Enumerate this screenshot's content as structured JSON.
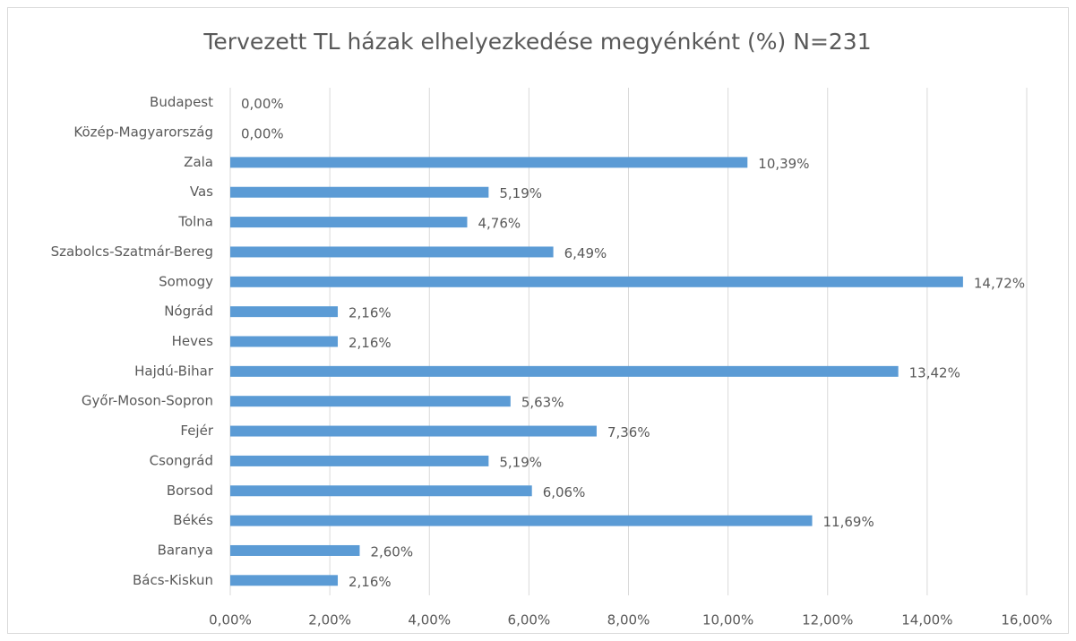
{
  "chart_data": {
    "type": "bar",
    "orientation": "horizontal",
    "title": "Tervezett TL házak elhelyezkedése megyénként (%) N=231",
    "categories": [
      "Budapest",
      "Közép-Magyarország",
      "Zala",
      "Vas",
      "Tolna",
      "Szabolcs-Szatmár-Bereg",
      "Somogy",
      "Nógrád",
      "Heves",
      "Hajdú-Bihar",
      "Győr-Moson-Sopron",
      "Fejér",
      "Csongrád",
      "Borsod",
      "Békés",
      "Baranya",
      "Bács-Kiskun"
    ],
    "values": [
      0,
      0,
      10.39,
      5.19,
      4.76,
      6.49,
      14.72,
      2.16,
      2.16,
      13.42,
      5.63,
      7.36,
      5.19,
      6.06,
      11.69,
      2.6,
      2.16
    ],
    "value_labels": [
      "0,00%",
      "0,00%",
      "10,39%",
      "5,19%",
      "4,76%",
      "6,49%",
      "14,72%",
      "2,16%",
      "2,16%",
      "13,42%",
      "5,63%",
      "7,36%",
      "5,19%",
      "6,06%",
      "11,69%",
      "2,60%",
      "2,16%"
    ],
    "color": "#5b9bd5",
    "xlim": [
      0,
      16
    ],
    "xticks": [
      {
        "value": 0,
        "label": "0,00%"
      },
      {
        "value": 2,
        "label": "2,00%"
      },
      {
        "value": 4,
        "label": "4,00%"
      },
      {
        "value": 6,
        "label": "6,00%"
      },
      {
        "value": 8,
        "label": "8,00%"
      },
      {
        "value": 10,
        "label": "10,00%"
      },
      {
        "value": 12,
        "label": "12,00%"
      },
      {
        "value": 14,
        "label": "14,00%"
      },
      {
        "value": 16,
        "label": "16,00%"
      }
    ],
    "grid": true
  }
}
